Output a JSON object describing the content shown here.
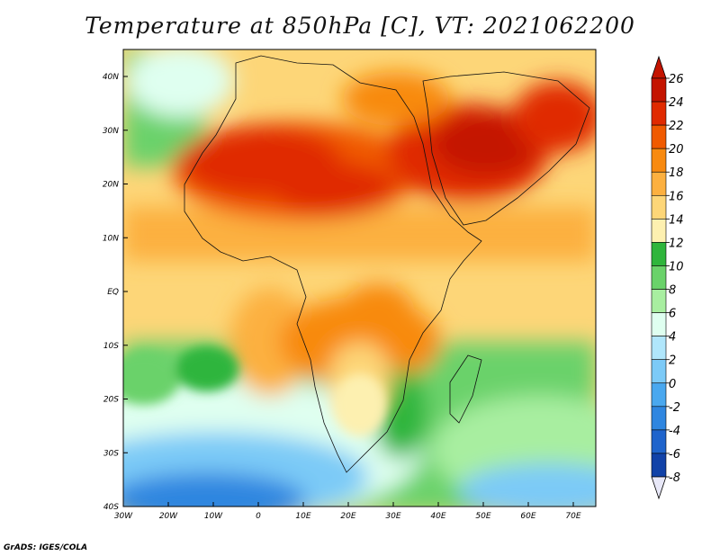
{
  "title": "Temperature at 850hPa [C], VT: 2021062200",
  "credit": "GrADS: IGES/COLA",
  "lon_ticks": [
    "30W",
    "20W",
    "10W",
    "0",
    "10E",
    "20E",
    "30E",
    "40E",
    "50E",
    "60E",
    "70E"
  ],
  "lat_ticks": [
    "40N",
    "30N",
    "20N",
    "10N",
    "EQ",
    "10S",
    "20S",
    "30S",
    "40S"
  ],
  "colorbar": {
    "labels": [
      "26",
      "24",
      "22",
      "20",
      "18",
      "16",
      "14",
      "12",
      "10",
      "8",
      "6",
      "4",
      "2",
      "0",
      "-2",
      "-4",
      "-6",
      "-8"
    ],
    "colors": [
      "#c41400",
      "#e02a00",
      "#f05a00",
      "#f88a10",
      "#fcb040",
      "#fdd678",
      "#fdf0b0",
      "#2fb53c",
      "#6ad26a",
      "#a8eea0",
      "#dffff0",
      "#b0e6fb",
      "#7ccaf7",
      "#4aa8ef",
      "#2f86e0",
      "#1f64cc",
      "#1142a8",
      "#08207a",
      "#000050"
    ]
  }
}
